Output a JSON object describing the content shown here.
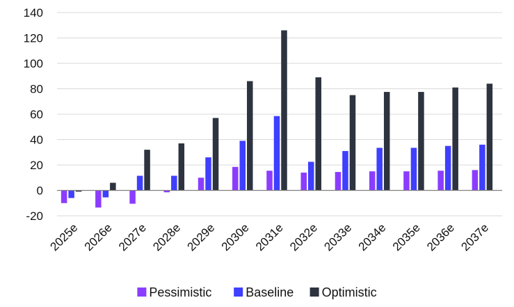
{
  "chart_data": {
    "type": "bar",
    "title": "",
    "xlabel": "",
    "ylabel": "",
    "categories": [
      "2025e",
      "2026e",
      "2027e",
      "2028e",
      "2029e",
      "2030e",
      "2031e",
      "2032e",
      "2033e",
      "2034e",
      "2035e",
      "2036e",
      "2037e"
    ],
    "series": [
      {
        "name": "Pessimistic",
        "color": "#8B3DFF",
        "values": [
          -10,
          -13.5,
          -10.5,
          -1.5,
          10,
          18.5,
          15.5,
          14,
          14.5,
          15,
          15,
          15.5,
          16
        ]
      },
      {
        "name": "Baseline",
        "color": "#3F3FFF",
        "values": [
          -6,
          -5.5,
          11.5,
          11.5,
          26,
          39,
          58.5,
          22.5,
          31,
          33.5,
          33.5,
          35,
          36
        ]
      },
      {
        "name": "Optimistic",
        "color": "#2D333F",
        "values": [
          -1,
          6,
          32,
          37,
          57,
          86,
          126,
          89,
          75,
          77.5,
          77.5,
          81,
          84
        ]
      }
    ],
    "ylim": [
      -20,
      140
    ],
    "yticks": [
      -20,
      0,
      20,
      40,
      60,
      80,
      100,
      120,
      140
    ],
    "grid": {
      "horizontal": true,
      "vertical": false,
      "color": "#D9D9D9"
    },
    "legend": {
      "position": "bottom"
    }
  }
}
